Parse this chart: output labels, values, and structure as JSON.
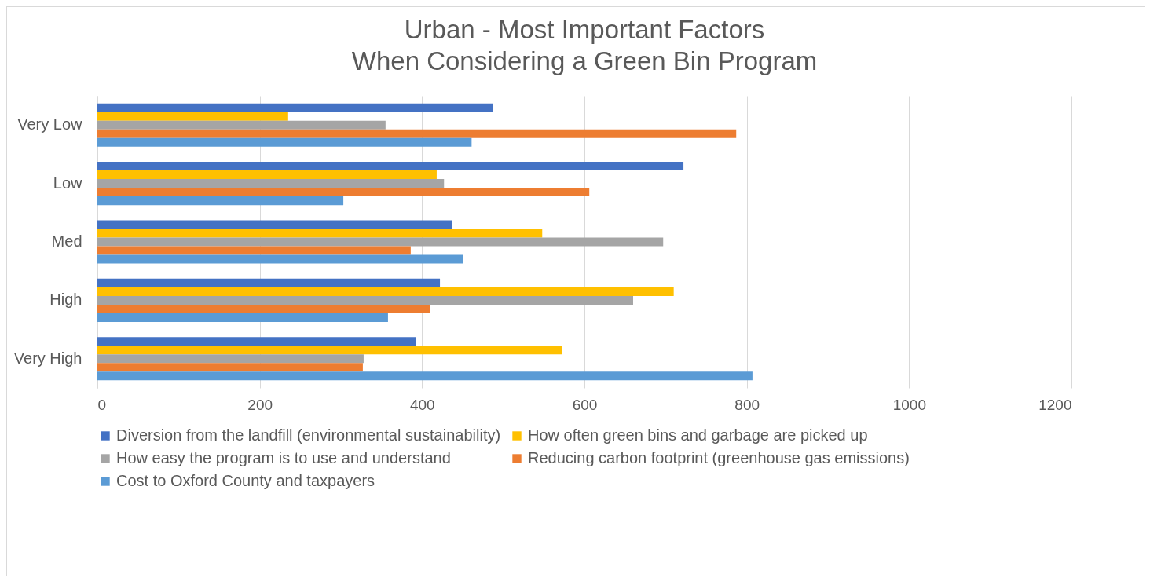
{
  "chart_data": {
    "type": "bar",
    "orientation": "horizontal",
    "title": [
      "Urban - Most Important Factors",
      "When Considering a Green Bin Program"
    ],
    "categories": [
      "Very Low",
      "Low",
      "Med",
      "High",
      "Very High"
    ],
    "series": [
      {
        "name": "Diversion from the landfill (environmental sustainability)",
        "color": "#4472c4",
        "values": [
          487,
          722,
          437,
          422,
          392
        ]
      },
      {
        "name": "How often green bins and garbage are picked up",
        "color": "#ffc000",
        "values": [
          235,
          418,
          548,
          710,
          572
        ]
      },
      {
        "name": "How easy the program is to use and understand",
        "color": "#a5a5a5",
        "values": [
          355,
          427,
          697,
          660,
          328
        ]
      },
      {
        "name": "Reducing carbon footprint (greenhouse gas emissions)",
        "color": "#ed7d31",
        "values": [
          787,
          606,
          386,
          410,
          327
        ]
      },
      {
        "name": "Cost to Oxford County and taxpayers",
        "color": "#5b9bd5",
        "values": [
          461,
          303,
          450,
          358,
          807
        ]
      }
    ],
    "xlim": [
      0,
      1200
    ],
    "xticks": [
      0,
      200,
      400,
      600,
      800,
      1000,
      1200
    ],
    "grid": "x",
    "legend": "bottom"
  }
}
